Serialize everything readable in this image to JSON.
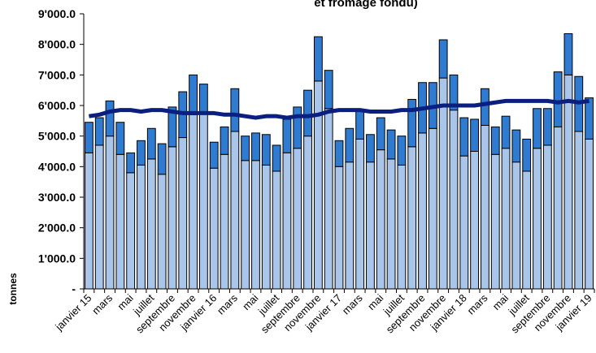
{
  "chart_data": {
    "type": "bar",
    "stacked": true,
    "title": "et fromage fondu)",
    "ylabel": "tonnes",
    "categories": [
      "janvier 15",
      null,
      "mars",
      null,
      "mai",
      null,
      "juillet",
      null,
      "septembre",
      null,
      "novembre",
      null,
      "janvier 16",
      null,
      "mars",
      null,
      "mai",
      null,
      "juillet",
      null,
      "septembre",
      null,
      "novembre",
      null,
      "janvier 17",
      null,
      "mars",
      null,
      "mai",
      null,
      "juillet",
      null,
      "septembre",
      null,
      "novembre",
      null,
      "janvier 18",
      null,
      "mars",
      null,
      "mai",
      null,
      "juillet",
      null,
      "septembre",
      null,
      "novembre",
      null,
      "janvier 19"
    ],
    "series": [
      {
        "color": "#a9c5e9",
        "values": [
          4450,
          4700,
          5000,
          4400,
          3800,
          4050,
          4250,
          3750,
          4650,
          4950,
          5700,
          5750,
          3950,
          4400,
          5150,
          4200,
          4200,
          4050,
          3850,
          4450,
          4600,
          5000,
          6800,
          5900,
          4000,
          4150,
          4900,
          4150,
          4550,
          4250,
          4050,
          4650,
          5100,
          5250,
          6900,
          5850,
          4350,
          4500,
          5350,
          4400,
          4600,
          4150,
          3850,
          4600,
          4700,
          5300,
          7000,
          5150,
          4900
        ]
      },
      {
        "color": "#2f7bd1",
        "values": [
          1000,
          900,
          1150,
          1050,
          650,
          800,
          1000,
          1000,
          1300,
          1500,
          1300,
          950,
          850,
          900,
          1400,
          800,
          900,
          1000,
          850,
          1100,
          1350,
          1500,
          1450,
          1250,
          850,
          1100,
          950,
          900,
          1050,
          950,
          950,
          1550,
          1650,
          1500,
          1250,
          1150,
          1250,
          1050,
          1200,
          900,
          1050,
          1050,
          1050,
          1300,
          1200,
          1800,
          1350,
          1800,
          1350
        ]
      },
      {
        "type": "line",
        "color": "#0b1f80",
        "values": [
          5650,
          5700,
          5800,
          5850,
          5850,
          5800,
          5850,
          5850,
          5800,
          5750,
          5750,
          5750,
          5750,
          5700,
          5700,
          5650,
          5600,
          5650,
          5650,
          5600,
          5650,
          5650,
          5700,
          5800,
          5850,
          5850,
          5850,
          5800,
          5800,
          5800,
          5850,
          5850,
          5900,
          5950,
          6000,
          6000,
          6000,
          6000,
          6050,
          6100,
          6150,
          6150,
          6150,
          6150,
          6150,
          6100,
          6150,
          6100,
          6150
        ]
      }
    ],
    "ylim": [
      0,
      9000
    ],
    "yticks": [
      {
        "value": 0,
        "label": "-"
      },
      {
        "value": 1000,
        "label": "1'000.0"
      },
      {
        "value": 2000,
        "label": "2'000.0"
      },
      {
        "value": 3000,
        "label": "3'000.0"
      },
      {
        "value": 4000,
        "label": "4'000.0"
      },
      {
        "value": 5000,
        "label": "5'000.0"
      },
      {
        "value": 6000,
        "label": "6'000.0"
      },
      {
        "value": 7000,
        "label": "7'000.0"
      },
      {
        "value": 8000,
        "label": "8'000.0"
      },
      {
        "value": 9000,
        "label": "9'000.0"
      }
    ]
  }
}
